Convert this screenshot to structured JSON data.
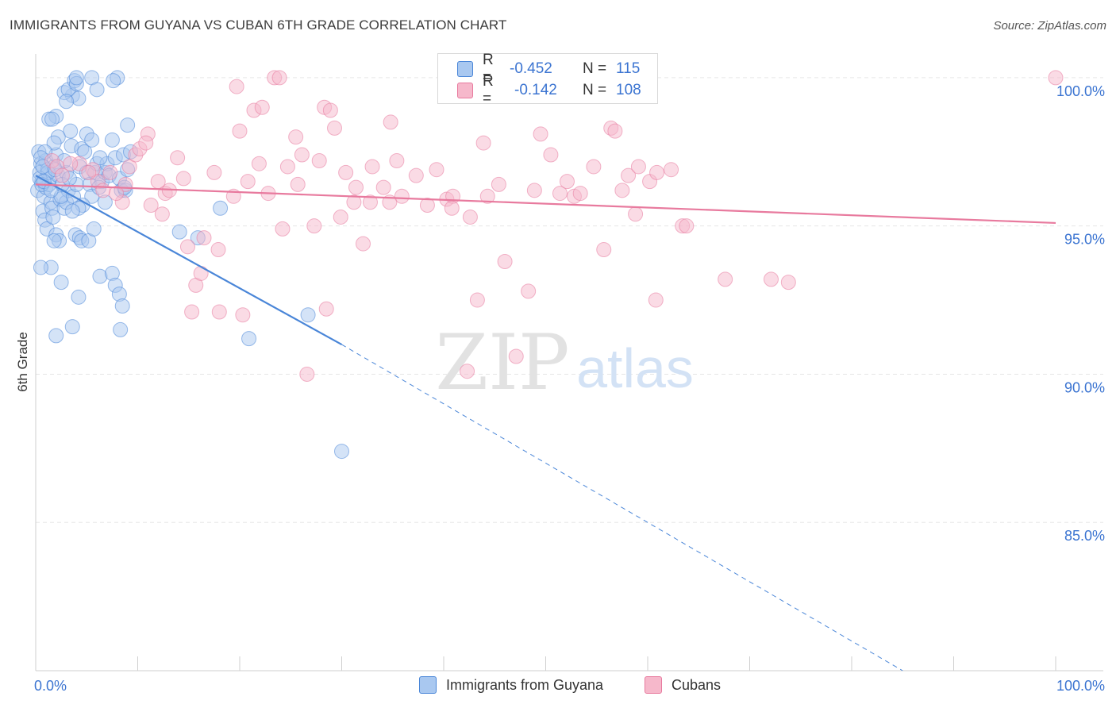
{
  "title": "IMMIGRANTS FROM GUYANA VS CUBAN 6TH GRADE CORRELATION CHART",
  "source": "Source: ZipAtlas.com",
  "watermark": {
    "zip": "ZIP",
    "atlas": "atlas"
  },
  "legend": {
    "rows": [
      {
        "r_label": "R =",
        "r_value": "-0.452",
        "n_label": "N =",
        "n_value": "115",
        "color": "#a9c8f0"
      },
      {
        "r_label": "R =",
        "r_value": "-0.142",
        "n_label": "N =",
        "n_value": "108",
        "color": "#f6b8cb"
      }
    ]
  },
  "bottom_legend": [
    {
      "label": "Immigrants from Guyana",
      "color": "#a9c8f0"
    },
    {
      "label": "Cubans",
      "color": "#f6b8cb"
    }
  ],
  "chart_data": {
    "type": "scatter",
    "ylabel": "6th Grade",
    "xlabel": "",
    "x_tick_labels": [
      "0.0%",
      "100.0%"
    ],
    "y_tick_labels": [
      "100.0%",
      "95.0%",
      "90.0%",
      "85.0%"
    ],
    "xlim": [
      0,
      100
    ],
    "ylim": [
      80.0,
      100.8
    ],
    "grid": true,
    "colors": {
      "guyana": "#4a86d8",
      "cubans": "#e87a9e",
      "guyana_fill": "#a9c8f0",
      "cubans_fill": "#f6b8cb"
    },
    "series": [
      {
        "name": "Immigrants from Guyana",
        "trend": {
          "x0": 0,
          "y0": 96.7,
          "x1": 30,
          "y1": 91.0,
          "dash_to_x": 85,
          "dash_to_y": 80.0
        },
        "points": [
          [
            0.3,
            97.5
          ],
          [
            0.5,
            97.1
          ],
          [
            0.4,
            96.8
          ],
          [
            0.6,
            96.5
          ],
          [
            0.2,
            96.2
          ],
          [
            0.8,
            96.0
          ],
          [
            1.0,
            97.2
          ],
          [
            1.2,
            96.9
          ],
          [
            1.4,
            96.6
          ],
          [
            1.0,
            96.3
          ],
          [
            0.7,
            95.5
          ],
          [
            0.9,
            95.2
          ],
          [
            1.1,
            94.9
          ],
          [
            1.5,
            95.8
          ],
          [
            1.3,
            96.4
          ],
          [
            1.8,
            97.0
          ],
          [
            2.0,
            97.4
          ],
          [
            2.2,
            96.7
          ],
          [
            1.6,
            95.6
          ],
          [
            2.4,
            95.9
          ],
          [
            2.0,
            94.7
          ],
          [
            2.3,
            94.5
          ],
          [
            1.8,
            94.5
          ],
          [
            1.5,
            93.6
          ],
          [
            2.5,
            93.1
          ],
          [
            2.8,
            95.6
          ],
          [
            3.0,
            95.8
          ],
          [
            3.2,
            96.2
          ],
          [
            3.0,
            96.8
          ],
          [
            2.8,
            97.2
          ],
          [
            3.5,
            97.7
          ],
          [
            3.4,
            98.2
          ],
          [
            3.6,
            99.4
          ],
          [
            2.8,
            99.5
          ],
          [
            3.2,
            99.6
          ],
          [
            2.0,
            98.7
          ],
          [
            2.2,
            98.0
          ],
          [
            1.8,
            97.8
          ],
          [
            3.8,
            99.9
          ],
          [
            4.0,
            99.8
          ],
          [
            4.2,
            99.3
          ],
          [
            3.0,
            99.2
          ],
          [
            2.5,
            96.0
          ],
          [
            3.7,
            96.0
          ],
          [
            4.0,
            96.4
          ],
          [
            4.3,
            97.0
          ],
          [
            4.5,
            97.6
          ],
          [
            4.8,
            97.5
          ],
          [
            5.0,
            96.8
          ],
          [
            5.3,
            96.4
          ],
          [
            5.5,
            96.0
          ],
          [
            4.6,
            95.7
          ],
          [
            4.2,
            95.6
          ],
          [
            3.6,
            95.5
          ],
          [
            3.9,
            94.7
          ],
          [
            4.3,
            94.6
          ],
          [
            4.5,
            94.5
          ],
          [
            5.2,
            94.5
          ],
          [
            5.0,
            98.1
          ],
          [
            5.5,
            97.9
          ],
          [
            5.8,
            96.8
          ],
          [
            6.0,
            97.1
          ],
          [
            6.5,
            96.5
          ],
          [
            6.2,
            96.3
          ],
          [
            6.8,
            96.8
          ],
          [
            7.0,
            97.1
          ],
          [
            7.2,
            96.7
          ],
          [
            6.8,
            95.8
          ],
          [
            5.7,
            94.9
          ],
          [
            6.3,
            97.3
          ],
          [
            7.5,
            97.9
          ],
          [
            7.8,
            97.3
          ],
          [
            8.2,
            96.6
          ],
          [
            8.4,
            96.2
          ],
          [
            8.6,
            97.4
          ],
          [
            8.8,
            96.2
          ],
          [
            9.0,
            98.4
          ],
          [
            9.3,
            97.5
          ],
          [
            9.0,
            96.9
          ],
          [
            8.7,
            96.3
          ],
          [
            1.2,
            96.8
          ],
          [
            1.7,
            95.3
          ],
          [
            0.5,
            93.6
          ],
          [
            2.0,
            91.3
          ],
          [
            3.6,
            91.6
          ],
          [
            4.2,
            92.6
          ],
          [
            6.3,
            93.3
          ],
          [
            7.5,
            93.4
          ],
          [
            7.8,
            93.0
          ],
          [
            8.2,
            92.7
          ],
          [
            8.5,
            92.3
          ],
          [
            8.3,
            91.5
          ],
          [
            4.0,
            100.0
          ],
          [
            5.5,
            100.0
          ],
          [
            6.0,
            99.6
          ],
          [
            8.0,
            100.0
          ],
          [
            7.6,
            99.9
          ],
          [
            1.3,
            98.6
          ],
          [
            1.6,
            98.6
          ],
          [
            0.9,
            97.5
          ],
          [
            14.1,
            94.8
          ],
          [
            15.9,
            94.6
          ],
          [
            18.1,
            95.6
          ],
          [
            20.9,
            91.2
          ],
          [
            26.7,
            92.0
          ],
          [
            30.0,
            87.4
          ],
          [
            0.4,
            96.6
          ],
          [
            0.6,
            96.4
          ],
          [
            0.8,
            96.5
          ],
          [
            1.5,
            96.2
          ],
          [
            2.6,
            96.4
          ],
          [
            3.3,
            96.6
          ],
          [
            0.5,
            97.3
          ],
          [
            0.7,
            97.0
          ],
          [
            1.9,
            96.9
          ]
        ]
      },
      {
        "name": "Cubans",
        "trend": {
          "x0": 0,
          "y0": 96.4,
          "x1": 100,
          "y1": 95.1
        },
        "points": [
          [
            1.6,
            97.2
          ],
          [
            2.1,
            97.0
          ],
          [
            4.3,
            97.1
          ],
          [
            5.6,
            96.9
          ],
          [
            6.1,
            96.5
          ],
          [
            6.6,
            96.2
          ],
          [
            7.3,
            96.8
          ],
          [
            8.5,
            95.8
          ],
          [
            8.8,
            96.4
          ],
          [
            9.2,
            97.0
          ],
          [
            9.8,
            97.4
          ],
          [
            10.2,
            97.6
          ],
          [
            11.0,
            98.1
          ],
          [
            11.3,
            95.7
          ],
          [
            12.0,
            96.5
          ],
          [
            12.4,
            95.4
          ],
          [
            12.7,
            96.1
          ],
          [
            13.1,
            96.2
          ],
          [
            13.9,
            97.3
          ],
          [
            14.5,
            96.6
          ],
          [
            14.9,
            94.3
          ],
          [
            15.7,
            93.0
          ],
          [
            16.2,
            93.4
          ],
          [
            16.5,
            94.6
          ],
          [
            17.5,
            96.8
          ],
          [
            17.9,
            94.2
          ],
          [
            18.0,
            92.1
          ],
          [
            19.4,
            96.0
          ],
          [
            19.7,
            99.7
          ],
          [
            20.0,
            98.2
          ],
          [
            20.8,
            96.5
          ],
          [
            21.4,
            98.9
          ],
          [
            21.9,
            97.1
          ],
          [
            22.8,
            96.1
          ],
          [
            23.4,
            100.0
          ],
          [
            23.9,
            100.0
          ],
          [
            24.2,
            94.9
          ],
          [
            24.7,
            97.0
          ],
          [
            25.5,
            98.0
          ],
          [
            25.7,
            96.4
          ],
          [
            26.6,
            90.0
          ],
          [
            27.3,
            95.0
          ],
          [
            27.8,
            97.2
          ],
          [
            28.3,
            99.0
          ],
          [
            28.5,
            92.2
          ],
          [
            28.9,
            98.9
          ],
          [
            29.3,
            98.3
          ],
          [
            29.9,
            95.3
          ],
          [
            30.4,
            96.8
          ],
          [
            31.4,
            96.3
          ],
          [
            32.1,
            94.4
          ],
          [
            32.8,
            95.8
          ],
          [
            33.0,
            97.0
          ],
          [
            34.1,
            96.3
          ],
          [
            34.7,
            95.8
          ],
          [
            34.8,
            98.5
          ],
          [
            35.4,
            97.2
          ],
          [
            35.9,
            96.0
          ],
          [
            37.3,
            96.7
          ],
          [
            38.4,
            95.7
          ],
          [
            39.3,
            96.9
          ],
          [
            40.3,
            95.9
          ],
          [
            40.9,
            96.0
          ],
          [
            40.8,
            95.6
          ],
          [
            42.3,
            90.1
          ],
          [
            42.6,
            95.3
          ],
          [
            43.3,
            92.5
          ],
          [
            43.9,
            97.8
          ],
          [
            45.4,
            96.4
          ],
          [
            46.0,
            93.8
          ],
          [
            47.1,
            90.6
          ],
          [
            48.3,
            92.8
          ],
          [
            48.9,
            96.2
          ],
          [
            49.5,
            98.1
          ],
          [
            50.5,
            97.4
          ],
          [
            51.4,
            96.1
          ],
          [
            52.1,
            96.5
          ],
          [
            52.8,
            96.0
          ],
          [
            53.4,
            96.1
          ],
          [
            54.7,
            97.0
          ],
          [
            55.7,
            94.2
          ],
          [
            56.4,
            98.3
          ],
          [
            56.8,
            98.2
          ],
          [
            57.5,
            96.2
          ],
          [
            58.1,
            96.7
          ],
          [
            58.8,
            95.4
          ],
          [
            59.1,
            97.0
          ],
          [
            60.2,
            96.5
          ],
          [
            60.8,
            92.5
          ],
          [
            60.9,
            96.8
          ],
          [
            62.3,
            96.9
          ],
          [
            63.4,
            95.0
          ],
          [
            63.8,
            95.0
          ],
          [
            67.6,
            93.2
          ],
          [
            72.1,
            93.2
          ],
          [
            73.8,
            93.1
          ],
          [
            100.0,
            100.0
          ],
          [
            2.6,
            96.7
          ],
          [
            3.4,
            97.1
          ],
          [
            5.2,
            96.8
          ],
          [
            7.9,
            96.1
          ],
          [
            10.8,
            97.8
          ],
          [
            15.3,
            92.1
          ],
          [
            20.3,
            92.0
          ],
          [
            22.2,
            99.0
          ],
          [
            26.1,
            97.4
          ],
          [
            31.2,
            95.8
          ],
          [
            44.3,
            96.0
          ]
        ]
      }
    ]
  }
}
